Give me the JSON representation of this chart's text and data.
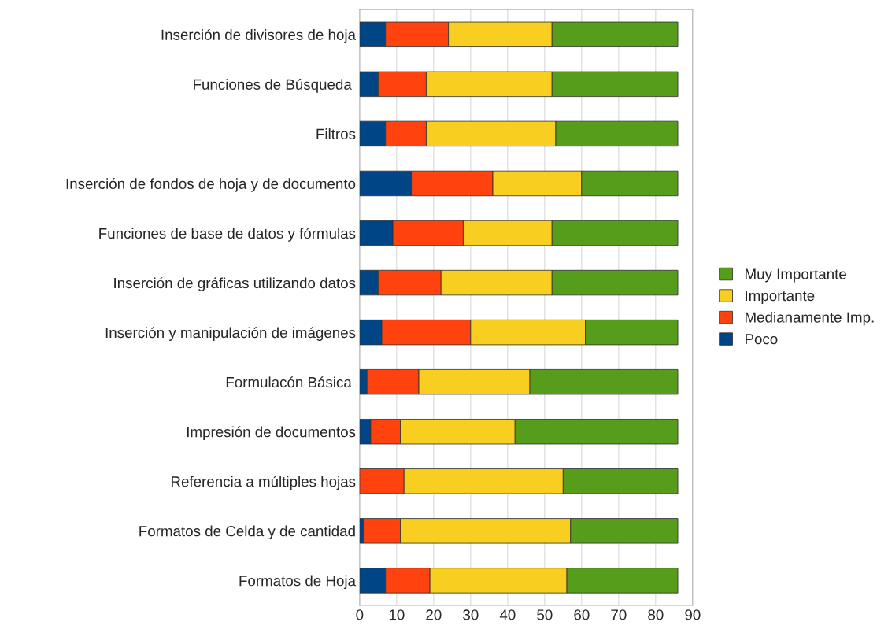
{
  "chart_data": {
    "type": "bar",
    "orientation": "horizontal",
    "stacked": true,
    "categories": [
      "Inserción de divisores de hoja",
      "Funciones de Búsqueda ",
      "Filtros",
      "Inserción de fondos de hoja y de documento",
      "Funciones de base de datos y fórmulas",
      "Inserción de gráficas utilizando datos",
      "Inserción y manipulación de imágenes",
      "Formulacón Básica ",
      "Impresión de documentos",
      "Referencia a múltiples hojas",
      "Formatos de Celda y de cantidad",
      "Formatos de Hoja"
    ],
    "series": [
      {
        "name": "Poco",
        "color": "#004586",
        "values": [
          7,
          5,
          7,
          14,
          9,
          5,
          6,
          2,
          3,
          0,
          1,
          7
        ]
      },
      {
        "name": "Medianamente Imp.",
        "color": "#ff420e",
        "values": [
          17,
          13,
          11,
          22,
          19,
          17,
          24,
          14,
          8,
          12,
          10,
          12
        ]
      },
      {
        "name": "Importante",
        "color": "#f8ce21",
        "values": [
          28,
          34,
          35,
          24,
          24,
          30,
          31,
          30,
          31,
          43,
          46,
          37
        ]
      },
      {
        "name": "Muy Importante",
        "color": "#579d1c",
        "values": [
          34,
          34,
          33,
          26,
          34,
          34,
          25,
          40,
          44,
          31,
          29,
          30
        ]
      }
    ],
    "xlim": [
      0,
      90
    ],
    "xticks": [
      0,
      10,
      20,
      30,
      40,
      50,
      60,
      70,
      80,
      90
    ],
    "grid": "x",
    "legend": "right"
  }
}
